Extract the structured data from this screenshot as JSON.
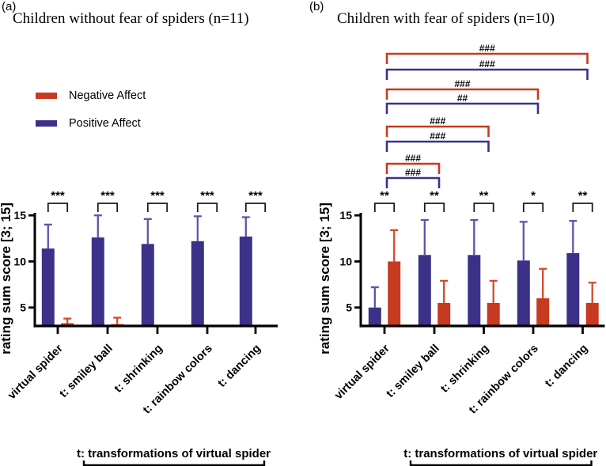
{
  "panels": [
    {
      "corner_label": "(a)",
      "title": "Children without fear of spiders (n=11)"
    },
    {
      "corner_label": "(b)",
      "title": "Children with fear of spiders (n=10)"
    }
  ],
  "legend": {
    "items": [
      {
        "label": "Negative Affect",
        "color": "#c63a21"
      },
      {
        "label": "Positive Affect",
        "color": "#3c3189"
      }
    ]
  },
  "chart_data": [
    {
      "type": "bar",
      "title": "Children without fear of spiders (n=11)",
      "categories": [
        "virtual spider",
        "t: smiley ball",
        "t: shrinking",
        "t: rainbow colors",
        "t: dancing"
      ],
      "series": [
        {
          "name": "Positive Affect",
          "color": "#3c3189",
          "error_color": "#5e53ac",
          "values": [
            11.4,
            12.6,
            11.9,
            12.2,
            12.7
          ],
          "errors": [
            2.6,
            2.4,
            2.7,
            2.7,
            2.1
          ]
        },
        {
          "name": "Negative Affect",
          "color": "#c63a21",
          "error_color": "#d24b2b",
          "values": [
            3.3,
            3.2,
            3.0,
            3.0,
            3.0
          ],
          "errors": [
            0.5,
            0.7,
            0,
            0,
            0
          ]
        }
      ],
      "ylabel": "rating sum score [3; 15]",
      "ylim": [
        3,
        15
      ],
      "yticks": [
        5,
        10,
        15
      ],
      "grid": false,
      "legend_position": "upper-left",
      "pair_significance": [
        "***",
        "***",
        "***",
        "***",
        "***"
      ],
      "footer_annotation": "t: transformations of virtual spider"
    },
    {
      "type": "bar",
      "title": "Children with fear of spiders (n=10)",
      "categories": [
        "virtual spider",
        "t: smiley ball",
        "t: shrinking",
        "t: rainbow colors",
        "t: dancing"
      ],
      "series": [
        {
          "name": "Positive Affect",
          "color": "#3c3189",
          "error_color": "#5e53ac",
          "values": [
            5.0,
            10.7,
            10.7,
            10.1,
            10.9
          ],
          "errors": [
            2.2,
            3.8,
            3.8,
            4.2,
            3.5
          ]
        },
        {
          "name": "Negative Affect",
          "color": "#c63a21",
          "error_color": "#d24b2b",
          "values": [
            10.0,
            5.5,
            5.5,
            6.0,
            5.5
          ],
          "errors": [
            3.4,
            2.4,
            2.4,
            3.2,
            2.2
          ]
        }
      ],
      "ylabel": "rating sum score [3; 15]",
      "ylim": [
        3,
        15
      ],
      "yticks": [
        5,
        10,
        15
      ],
      "grid": false,
      "pair_significance": [
        "**",
        "**",
        "**",
        "*",
        "**"
      ],
      "comparison_brackets": [
        {
          "from": 0,
          "to": 4,
          "series": "Negative Affect",
          "label": "###"
        },
        {
          "from": 0,
          "to": 4,
          "series": "Positive Affect",
          "label": "###"
        },
        {
          "from": 0,
          "to": 3,
          "series": "Negative Affect",
          "label": "###"
        },
        {
          "from": 0,
          "to": 3,
          "series": "Positive Affect",
          "label": "##"
        },
        {
          "from": 0,
          "to": 2,
          "series": "Negative Affect",
          "label": "###"
        },
        {
          "from": 0,
          "to": 2,
          "series": "Positive Affect",
          "label": "###"
        },
        {
          "from": 0,
          "to": 1,
          "series": "Negative Affect",
          "label": "###"
        },
        {
          "from": 0,
          "to": 1,
          "series": "Positive Affect",
          "label": "###"
        }
      ],
      "footer_annotation": "t: transformations of virtual spider"
    }
  ]
}
